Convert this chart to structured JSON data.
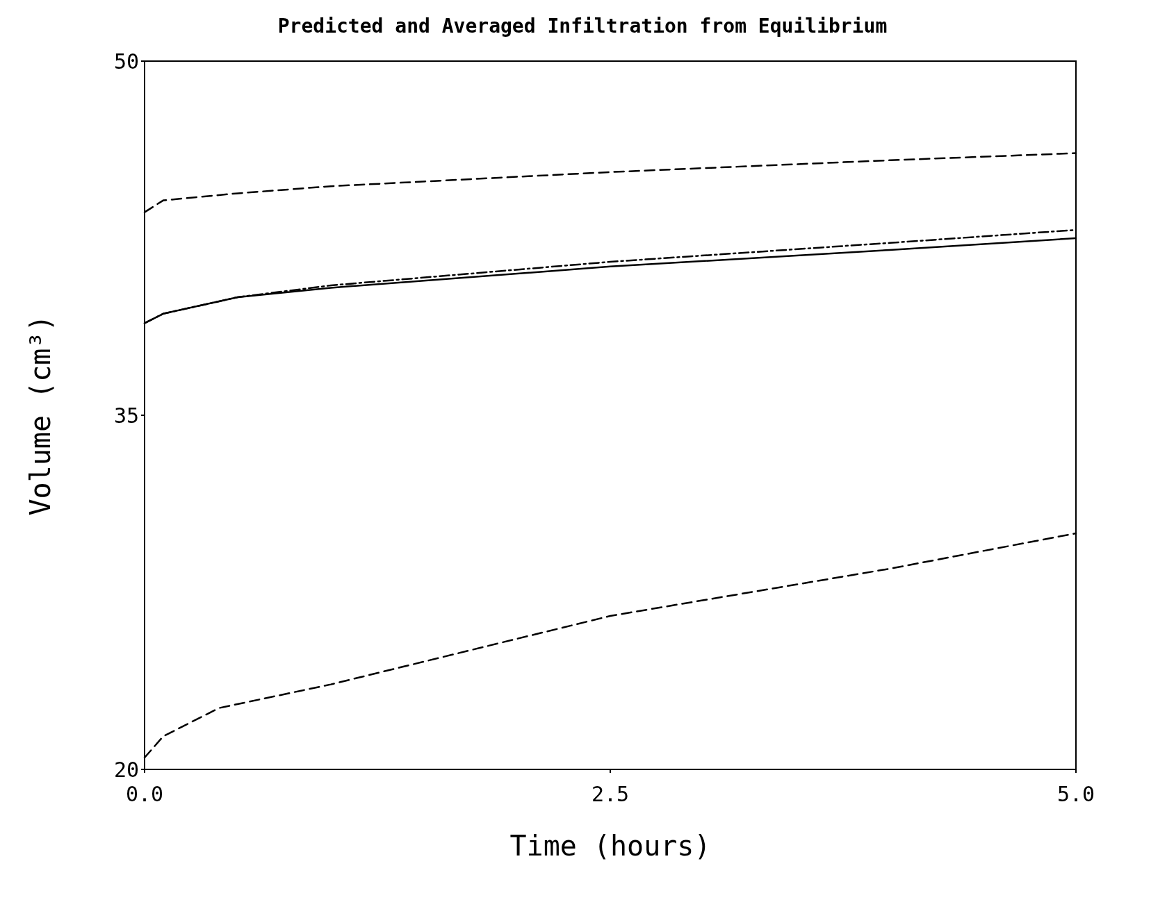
{
  "chart_data": {
    "type": "line",
    "title": "Predicted and Averaged Infiltration from Equilibrium",
    "xlabel": "Time (hours)",
    "ylabel": "Volume (cm³)",
    "xlim": [
      0,
      5
    ],
    "xticks": [
      {
        "value": 0,
        "label": "0.0"
      },
      {
        "value": 2.5,
        "label": "2.5"
      },
      {
        "value": 5,
        "label": "5.0"
      }
    ],
    "ylim": [
      20,
      50
    ],
    "yticks": [
      20,
      35,
      50
    ],
    "grid": false,
    "marker": "none",
    "series": [
      {
        "color": "#000000",
        "line_style": "dashed",
        "x": [
          0,
          0.1,
          0.5,
          1,
          2.5,
          4,
          5
        ],
        "values": [
          43.6,
          44.1,
          44.4,
          44.7,
          45.3,
          45.8,
          46.1
        ]
      },
      {
        "color": "#000000",
        "line_style": "solid",
        "x": [
          0,
          0.1,
          0.5,
          1,
          2.5,
          4,
          5
        ],
        "values": [
          38.9,
          39.3,
          40.0,
          40.4,
          41.3,
          42.0,
          42.5
        ]
      },
      {
        "color": "#000000",
        "line_style": "dashdot",
        "x": [
          0,
          0.1,
          0.5,
          1,
          2.5,
          4,
          5
        ],
        "values": [
          38.9,
          39.3,
          40.0,
          40.5,
          41.5,
          42.3,
          42.85
        ]
      },
      {
        "color": "#000000",
        "line_style": "dashed",
        "x": [
          0,
          0.1,
          0.4,
          1,
          2.5,
          4,
          5
        ],
        "values": [
          20.5,
          21.4,
          22.6,
          23.6,
          26.5,
          28.5,
          30.0
        ]
      }
    ]
  }
}
